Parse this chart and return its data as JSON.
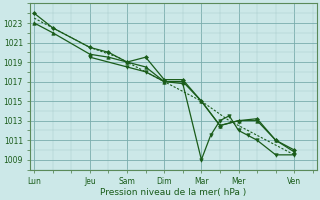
{
  "xlabel": "Pression niveau de la mer( hPa )",
  "bg_color": "#cce8e8",
  "grid_minor_color": "#aacccc",
  "grid_major_color": "#7aadad",
  "line_color": "#1a5c1a",
  "spine_color": "#5a8a5a",
  "ylim": [
    1008.0,
    1025.0
  ],
  "yticks": [
    1009,
    1011,
    1013,
    1015,
    1017,
    1019,
    1021,
    1023
  ],
  "xtick_labels": [
    "Lun",
    "Jeu",
    "Sam",
    "Dim",
    "Mar",
    "Mer",
    "Ven"
  ],
  "xtick_positions": [
    0,
    3,
    5,
    7,
    9,
    11,
    14
  ],
  "xlim": [
    -0.2,
    15.2
  ],
  "series": [
    {
      "x": [
        0,
        1,
        3,
        4,
        5,
        6,
        7,
        8,
        9,
        10,
        11,
        12,
        13,
        14
      ],
      "y": [
        1024,
        1022.5,
        1020.5,
        1020,
        1019,
        1019.5,
        1017.2,
        1017.2,
        1015,
        1012.5,
        1013.0,
        1013.2,
        1011.0,
        1010.0
      ],
      "style": "-",
      "marker": "D",
      "ms": 2.0,
      "lw": 0.9
    },
    {
      "x": [
        0,
        1,
        3,
        4,
        5,
        6,
        7,
        8,
        9,
        10,
        11,
        12,
        13,
        14
      ],
      "y": [
        1023,
        1022,
        1019.8,
        1019.5,
        1019,
        1018.5,
        1017,
        1017.0,
        1015.0,
        1012.5,
        1013.0,
        1013.0,
        1011.0,
        1009.8
      ],
      "style": "-",
      "marker": "^",
      "ms": 2.5,
      "lw": 0.9
    },
    {
      "x": [
        3,
        5,
        6,
        7,
        8,
        9,
        9.5,
        10,
        10.5,
        11,
        11.5,
        12,
        13,
        14
      ],
      "y": [
        1019.5,
        1018.5,
        1018.0,
        1017.0,
        1016.8,
        1009.0,
        1011.5,
        1013.0,
        1013.5,
        1012.0,
        1011.5,
        1011.0,
        1009.5,
        1009.5
      ],
      "style": "-",
      "marker": "v",
      "ms": 2.5,
      "lw": 0.9
    },
    {
      "x": [
        0,
        1.5,
        3,
        4.5,
        6,
        7.5,
        9,
        10.5,
        12,
        13.5,
        14
      ],
      "y": [
        1023.5,
        1022.0,
        1020.5,
        1019.5,
        1018.0,
        1016.5,
        1015.0,
        1013.0,
        1011.5,
        1010.0,
        1009.5
      ],
      "style": "-",
      "marker": null,
      "ms": 0,
      "lw": 0.8,
      "dotted": true
    }
  ]
}
